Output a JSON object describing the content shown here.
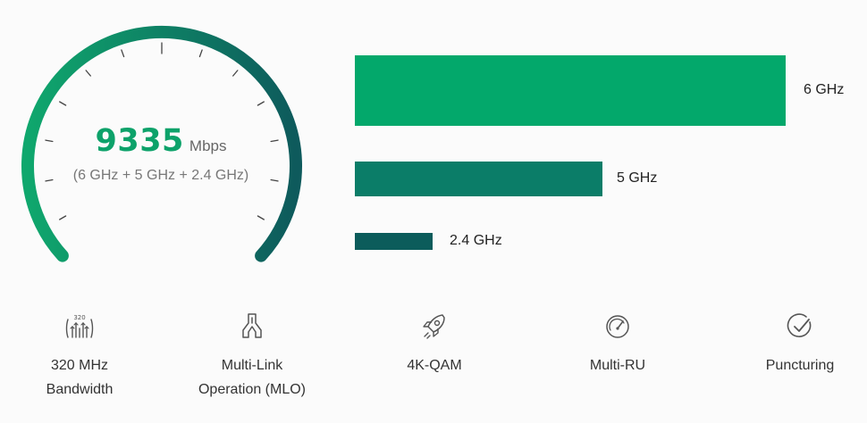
{
  "gauge": {
    "value": "9335",
    "unit": "Mbps",
    "subtitle": "(6 GHz + 5 GHz + 2.4 GHz)",
    "colors": {
      "start": "#0fa76d",
      "end": "#0e5a5c"
    }
  },
  "bands": [
    {
      "label": "6 GHz",
      "relative_speed": 1.0,
      "color": "#03a86b"
    },
    {
      "label": "5 GHz",
      "relative_speed": 0.574,
      "color": "#0b7d68"
    },
    {
      "label": "2.4 GHz",
      "relative_speed": 0.181,
      "color": "#0c5c5b"
    }
  ],
  "features": [
    {
      "icon": "bandwidth-320-icon",
      "icon_text": "320",
      "lines": [
        "320 MHz",
        "Bandwidth"
      ]
    },
    {
      "icon": "multi-link-icon",
      "lines": [
        "Multi-Link",
        "Operation (MLO)"
      ]
    },
    {
      "icon": "rocket-icon",
      "lines": [
        "4K-QAM"
      ]
    },
    {
      "icon": "speedometer-icon",
      "lines": [
        "Multi-RU"
      ]
    },
    {
      "icon": "check-circle-icon",
      "lines": [
        "Puncturing"
      ]
    }
  ]
}
